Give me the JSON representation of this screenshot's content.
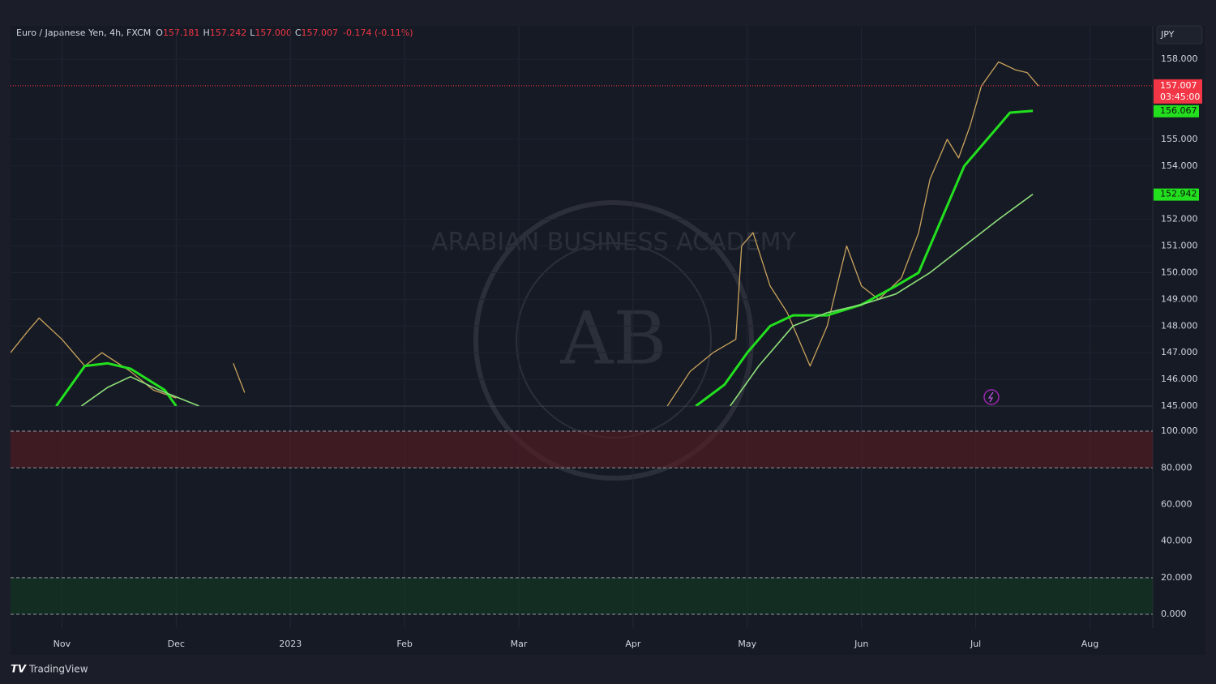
{
  "header": {
    "symbol": "Euro / Japanese Yen, 4h, FXCM",
    "ohlc": [
      {
        "key": "O",
        "value": "157.181"
      },
      {
        "key": "H",
        "value": "157.242"
      },
      {
        "key": "L",
        "value": "157.000"
      },
      {
        "key": "C",
        "value": "157.007"
      }
    ],
    "change": "-0.174 (-0.11%)",
    "currency": "JPY"
  },
  "watermark": {
    "text": "ARABIAN BUSINESS ACADEMY",
    "logo": "AB"
  },
  "footer": {
    "brand": "TradingView"
  },
  "chart_data": [
    {
      "type": "line",
      "xlim": [
        -0.45,
        9.55
      ],
      "xticks": [
        {
          "value": 0,
          "label": "Nov"
        },
        {
          "value": 1,
          "label": "Dec"
        },
        {
          "value": 2,
          "label": "2023"
        },
        {
          "value": 3,
          "label": "Feb"
        },
        {
          "value": 4,
          "label": "Mar"
        },
        {
          "value": 5,
          "label": "Apr"
        },
        {
          "value": 6,
          "label": "May"
        },
        {
          "value": 7,
          "label": "Jun"
        },
        {
          "value": 8,
          "label": "Jul"
        },
        {
          "value": 9,
          "label": "Aug"
        }
      ],
      "ylim": [
        145,
        159.25
      ],
      "yticks": [
        {
          "value": 158,
          "label": "158.000"
        },
        {
          "value": 155,
          "label": "155.000"
        },
        {
          "value": 154,
          "label": "154.000"
        },
        {
          "value": 152,
          "label": "152.000"
        },
        {
          "value": 151,
          "label": "151.000"
        },
        {
          "value": 150,
          "label": "150.000"
        },
        {
          "value": 149,
          "label": "149.000"
        },
        {
          "value": 148,
          "label": "148.000"
        },
        {
          "value": 147,
          "label": "147.000"
        },
        {
          "value": 146,
          "label": "146.000"
        },
        {
          "value": 145,
          "label": "145.000"
        }
      ],
      "grid": true,
      "series": [
        {
          "color": "#c9a35c",
          "x": [
            -0.45,
            -0.3,
            -0.2,
            0.0,
            0.2,
            0.35,
            0.6,
            0.8,
            1.0,
            1.2,
            1.5,
            1.6,
            1.7,
            5.3,
            5.5,
            5.7,
            5.9,
            5.95,
            6.05,
            6.2,
            6.35,
            6.45,
            6.55,
            6.7,
            6.87,
            7.0,
            7.15,
            7.35,
            7.5,
            7.6,
            7.75,
            7.85,
            7.95,
            8.05,
            8.2,
            8.35,
            8.45,
            8.55
          ],
          "values": [
            147.0,
            147.8,
            148.3,
            147.5,
            146.5,
            147.0,
            146.3,
            145.6,
            145.3,
            null,
            146.6,
            145.5,
            null,
            145.0,
            146.3,
            147.0,
            147.5,
            151.0,
            151.5,
            149.5,
            148.5,
            147.5,
            146.5,
            148.0,
            151.0,
            149.5,
            149.0,
            149.8,
            151.5,
            153.5,
            155.0,
            154.3,
            155.5,
            157.0,
            157.9,
            157.6,
            157.5,
            157.0
          ]
        },
        {
          "color": "#22e01e",
          "x": [
            -0.05,
            0.2,
            0.4,
            0.6,
            0.9,
            1.0,
            1.1,
            5.55,
            5.8,
            6.0,
            6.2,
            6.4,
            6.7,
            7.0,
            7.3,
            7.5,
            7.7,
            7.9,
            8.1,
            8.3,
            8.5
          ],
          "values": [
            145.0,
            146.5,
            146.6,
            146.4,
            145.6,
            145.0,
            null,
            145.0,
            145.8,
            147.0,
            148.0,
            148.4,
            148.4,
            148.8,
            149.5,
            150.0,
            152.0,
            154.0,
            155.0,
            156.0,
            156.067
          ]
        },
        {
          "color": "#8ee07a",
          "x": [
            0.17,
            0.4,
            0.6,
            0.85,
            1.2,
            1.3,
            5.85,
            6.1,
            6.4,
            6.7,
            7.0,
            7.3,
            7.6,
            7.9,
            8.2,
            8.5
          ],
          "values": [
            145.0,
            145.7,
            146.1,
            145.6,
            145.0,
            null,
            145.0,
            146.5,
            148.0,
            148.5,
            148.8,
            149.2,
            150.0,
            151.0,
            152.0,
            152.942
          ]
        }
      ],
      "last_price": {
        "value": 157.007,
        "color": "#f23645",
        "countdown": "03:45:00"
      },
      "ma_labels": [
        {
          "value": 156.067,
          "color": "#22e01e"
        },
        {
          "value": 152.942,
          "color": "#22e01e"
        }
      ]
    },
    {
      "type": "bands",
      "ylim": [
        -7.5,
        113.3
      ],
      "yticks": [
        {
          "value": 100,
          "label": "100.000"
        },
        {
          "value": 80,
          "label": "80.000"
        },
        {
          "value": 60,
          "label": "60.000"
        },
        {
          "value": 40,
          "label": "40.000"
        },
        {
          "value": 20,
          "label": "20.000"
        },
        {
          "value": 0,
          "label": "0.000"
        }
      ],
      "bands": [
        {
          "range": [
            80,
            100
          ],
          "color": "#5a1a22"
        },
        {
          "range": [
            0,
            20
          ],
          "color": "#143a22"
        }
      ],
      "levels": [
        100,
        80,
        20,
        0
      ]
    }
  ]
}
